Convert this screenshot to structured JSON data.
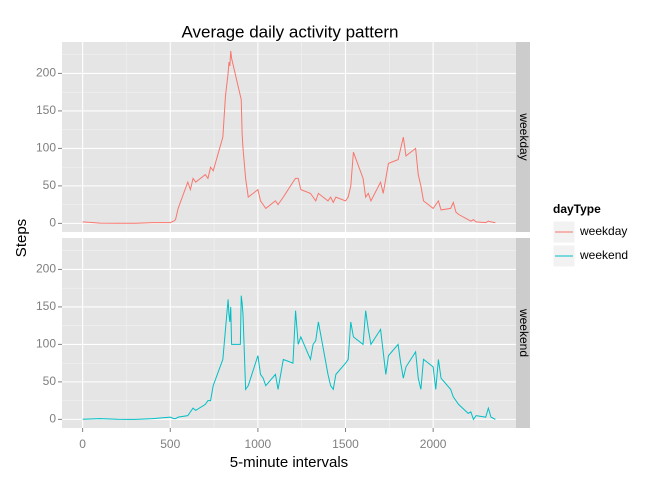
{
  "chart_data": {
    "type": "line",
    "title": "Average daily activity pattern",
    "xlabel": "5-minute intervals",
    "ylabel": "Steps",
    "legend_title": "dayType",
    "legend_position": "right",
    "facet_by_series": true,
    "grid": true,
    "x": [
      0,
      100,
      200,
      300,
      400,
      500,
      520,
      530,
      545,
      600,
      615,
      630,
      645,
      700,
      715,
      730,
      745,
      800,
      815,
      830,
      835,
      840,
      845,
      850,
      900,
      905,
      910,
      915,
      930,
      945,
      1000,
      1015,
      1030,
      1045,
      1100,
      1115,
      1130,
      1145,
      1200,
      1215,
      1230,
      1245,
      1300,
      1315,
      1330,
      1345,
      1400,
      1415,
      1430,
      1445,
      1500,
      1515,
      1530,
      1545,
      1600,
      1615,
      1630,
      1645,
      1700,
      1715,
      1730,
      1745,
      1800,
      1815,
      1830,
      1845,
      1900,
      1915,
      1930,
      1945,
      2000,
      2015,
      2030,
      2045,
      2100,
      2115,
      2130,
      2145,
      2200,
      2215,
      2230,
      2245,
      2300,
      2315,
      2330,
      2355
    ],
    "series": [
      {
        "name": "weekday",
        "color": "#f8766d",
        "values": [
          2,
          0.4,
          0.2,
          0.1,
          1,
          1,
          3,
          5,
          20,
          55,
          45,
          60,
          55,
          65,
          60,
          75,
          70,
          115,
          170,
          200,
          215,
          210,
          230,
          220,
          170,
          165,
          120,
          100,
          60,
          35,
          45,
          30,
          25,
          20,
          30,
          25,
          30,
          35,
          55,
          60,
          60,
          45,
          40,
          35,
          30,
          40,
          30,
          35,
          28,
          35,
          30,
          35,
          50,
          95,
          60,
          35,
          40,
          30,
          55,
          40,
          60,
          80,
          85,
          100,
          115,
          90,
          100,
          65,
          50,
          30,
          20,
          25,
          30,
          18,
          20,
          28,
          15,
          12,
          5,
          3,
          5,
          2,
          1,
          3,
          2,
          1
        ]
      },
      {
        "name": "weekend",
        "color": "#00bfc4",
        "values": [
          0.2,
          1,
          0.1,
          0,
          1,
          3,
          1,
          1,
          3,
          5,
          10,
          15,
          12,
          20,
          25,
          25,
          45,
          80,
          120,
          160,
          140,
          130,
          150,
          100,
          100,
          165,
          155,
          140,
          40,
          45,
          85,
          60,
          55,
          45,
          60,
          40,
          60,
          80,
          75,
          145,
          100,
          110,
          80,
          100,
          105,
          130,
          60,
          45,
          40,
          60,
          75,
          80,
          130,
          110,
          100,
          145,
          120,
          100,
          120,
          90,
          60,
          85,
          100,
          75,
          55,
          70,
          90,
          55,
          40,
          80,
          70,
          40,
          80,
          55,
          40,
          30,
          25,
          20,
          8,
          10,
          0,
          5,
          3,
          15,
          3,
          0
        ]
      }
    ],
    "xlim": [
      -117.75,
      2472.75
    ],
    "xticks": [
      0,
      500,
      1000,
      1500,
      2000
    ],
    "x_minor_ticks": [
      250,
      750,
      1250,
      1750,
      2250
    ],
    "ylim": [
      -11.5,
      241.9
    ],
    "yticks": [
      0,
      50,
      100,
      150,
      200
    ],
    "y_minor_ticks": [
      25,
      75,
      125,
      175,
      225
    ]
  }
}
